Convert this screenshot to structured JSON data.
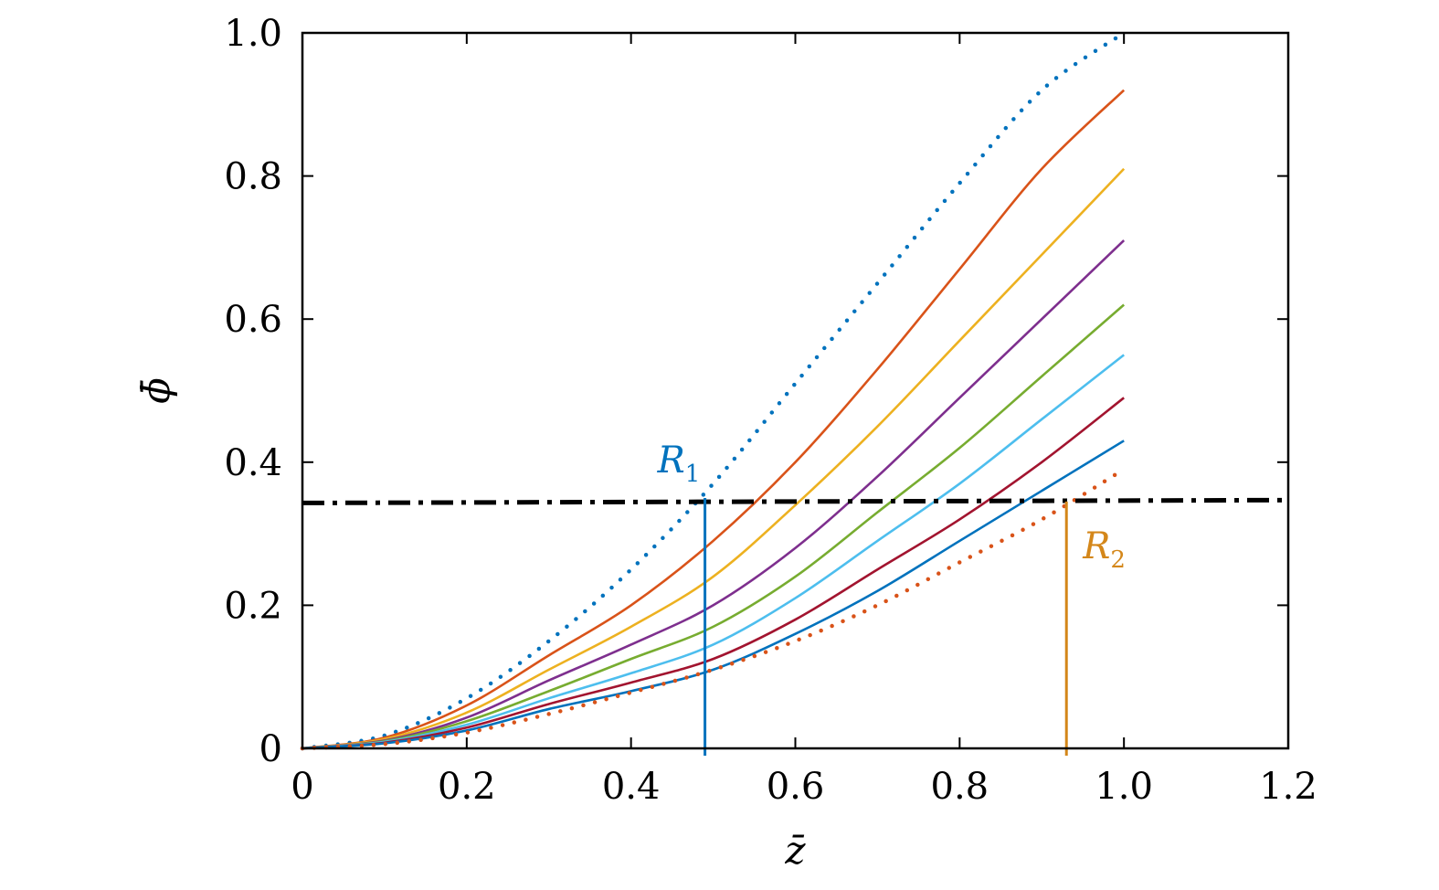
{
  "chart_data": {
    "type": "line",
    "xlabel": "z̄",
    "ylabel": "ϕ̄",
    "xlim": [
      0,
      1.2
    ],
    "ylim": [
      0,
      1.0
    ],
    "x_ticks": [
      "0",
      "0.2",
      "0.4",
      "0.6",
      "0.8",
      "1.0",
      "1.2"
    ],
    "y_ticks": [
      "0",
      "0.2",
      "0.4",
      "0.6",
      "0.8",
      "1.0"
    ],
    "grid": false,
    "legend": "none",
    "colors": {
      "blue": "#0072BD",
      "orange": "#D95319",
      "yellow": "#EDB120",
      "purple": "#7E2F8E",
      "green": "#77AC30",
      "cyan": "#4DBEEE",
      "crimson": "#A2142F",
      "annot_orange": "#D4871A"
    },
    "series": [
      {
        "style": "dotted",
        "color": "#0072BD",
        "x": [
          0,
          0.1,
          0.2,
          0.3,
          0.4,
          0.5,
          0.6,
          0.7,
          0.8,
          0.9,
          1.0
        ],
        "y": [
          0,
          0.018,
          0.07,
          0.15,
          0.25,
          0.37,
          0.51,
          0.65,
          0.79,
          0.92,
          1.0
        ]
      },
      {
        "style": "solid",
        "color": "#D95319",
        "x": [
          0,
          0.1,
          0.2,
          0.3,
          0.4,
          0.5,
          0.6,
          0.7,
          0.8,
          0.9,
          1.0
        ],
        "y": [
          0,
          0.015,
          0.06,
          0.13,
          0.2,
          0.29,
          0.4,
          0.53,
          0.67,
          0.81,
          0.92
        ]
      },
      {
        "style": "solid",
        "color": "#EDB120",
        "x": [
          0,
          0.1,
          0.2,
          0.3,
          0.4,
          0.5,
          0.6,
          0.7,
          0.8,
          0.9,
          1.0
        ],
        "y": [
          0,
          0.013,
          0.05,
          0.11,
          0.17,
          0.24,
          0.34,
          0.45,
          0.57,
          0.69,
          0.81
        ]
      },
      {
        "style": "solid",
        "color": "#7E2F8E",
        "x": [
          0,
          0.1,
          0.2,
          0.3,
          0.4,
          0.5,
          0.6,
          0.7,
          0.8,
          0.9,
          1.0
        ],
        "y": [
          0,
          0.011,
          0.043,
          0.095,
          0.145,
          0.2,
          0.28,
          0.38,
          0.49,
          0.6,
          0.71
        ]
      },
      {
        "style": "solid",
        "color": "#77AC30",
        "x": [
          0,
          0.1,
          0.2,
          0.3,
          0.4,
          0.5,
          0.6,
          0.7,
          0.8,
          0.9,
          1.0
        ],
        "y": [
          0,
          0.01,
          0.038,
          0.08,
          0.125,
          0.17,
          0.24,
          0.33,
          0.42,
          0.52,
          0.62
        ]
      },
      {
        "style": "solid",
        "color": "#4DBEEE",
        "x": [
          0,
          0.1,
          0.2,
          0.3,
          0.4,
          0.5,
          0.6,
          0.7,
          0.8,
          0.9,
          1.0
        ],
        "y": [
          0,
          0.009,
          0.033,
          0.07,
          0.105,
          0.145,
          0.21,
          0.29,
          0.37,
          0.46,
          0.55
        ]
      },
      {
        "style": "solid",
        "color": "#A2142F",
        "x": [
          0,
          0.1,
          0.2,
          0.3,
          0.4,
          0.5,
          0.6,
          0.7,
          0.8,
          0.9,
          1.0
        ],
        "y": [
          0,
          0.008,
          0.029,
          0.062,
          0.092,
          0.125,
          0.18,
          0.25,
          0.32,
          0.4,
          0.49
        ]
      },
      {
        "style": "solid",
        "color": "#0072BD",
        "x": [
          0,
          0.1,
          0.2,
          0.3,
          0.4,
          0.5,
          0.6,
          0.7,
          0.8,
          0.9,
          1.0
        ],
        "y": [
          0,
          0.007,
          0.025,
          0.055,
          0.08,
          0.11,
          0.16,
          0.22,
          0.29,
          0.36,
          0.43
        ]
      },
      {
        "style": "dotted",
        "color": "#D95319",
        "x": [
          0,
          0.1,
          0.2,
          0.3,
          0.4,
          0.5,
          0.6,
          0.7,
          0.8,
          0.9,
          1.0
        ],
        "y": [
          0,
          0.006,
          0.022,
          0.048,
          0.078,
          0.11,
          0.15,
          0.2,
          0.26,
          0.32,
          0.39
        ]
      },
      {
        "style": "dashdot",
        "color": "#000000",
        "x": [
          0,
          1.2
        ],
        "y": [
          0.343,
          0.347
        ]
      }
    ],
    "annotations": [
      {
        "text": "R",
        "sub": "1",
        "color": "#0072BD",
        "x": 0.49,
        "y_from": 0,
        "y_to": 0.35
      },
      {
        "text": "R",
        "sub": "2",
        "color": "#D4871A",
        "x": 0.93,
        "y_from": 0,
        "y_to": 0.345
      }
    ]
  }
}
